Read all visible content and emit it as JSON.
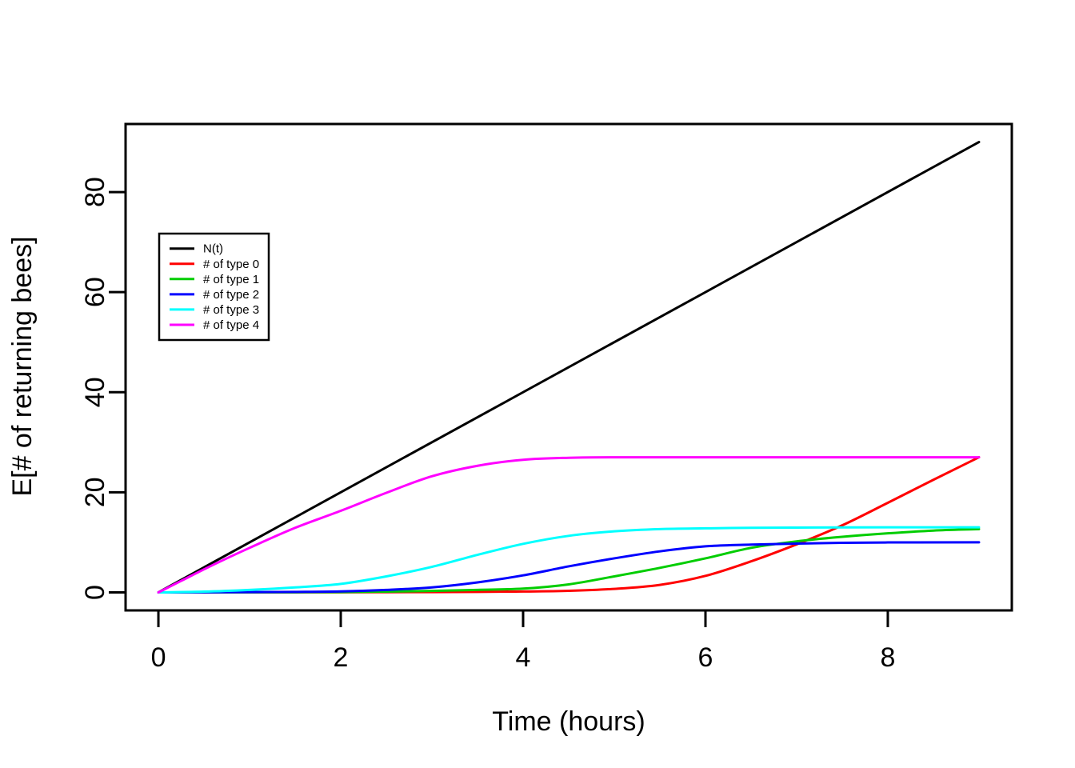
{
  "figure": {
    "background": "#ffffff",
    "axis_color": "#000000",
    "text_color": "#000000"
  },
  "chart_data": {
    "type": "line",
    "title": "",
    "xlabel": "Time (hours)",
    "ylabel": "E[# of returning bees]",
    "xlim": [
      0,
      9
    ],
    "ylim": [
      0,
      90
    ],
    "x_ticks": [
      0,
      2,
      4,
      6,
      8
    ],
    "y_ticks": [
      0,
      20,
      40,
      60,
      80
    ],
    "grid": false,
    "legend": {
      "position": "upper-left-inside",
      "border": true,
      "background": "#ffffff"
    },
    "series": [
      {
        "name": "N(t)",
        "color": "#000000",
        "points": [
          [
            0,
            0
          ],
          [
            9,
            90
          ]
        ]
      },
      {
        "name": "# of type 0",
        "color": "#FF0000",
        "points": [
          [
            0,
            0
          ],
          [
            1,
            0
          ],
          [
            2,
            0.02
          ],
          [
            3,
            0.06
          ],
          [
            3.5,
            0.1
          ],
          [
            4,
            0.17
          ],
          [
            4.5,
            0.32
          ],
          [
            5,
            0.7
          ],
          [
            5.5,
            1.5
          ],
          [
            6,
            3.3
          ],
          [
            6.5,
            6.2
          ],
          [
            7,
            9.6
          ],
          [
            7.5,
            13.4
          ],
          [
            8,
            17.9
          ],
          [
            8.5,
            22.5
          ],
          [
            9,
            27
          ]
        ]
      },
      {
        "name": "# of type 1",
        "color": "#00CD00",
        "points": [
          [
            0,
            0
          ],
          [
            1,
            0.01
          ],
          [
            2,
            0.06
          ],
          [
            2.5,
            0.15
          ],
          [
            3,
            0.3
          ],
          [
            3.5,
            0.5
          ],
          [
            4,
            0.75
          ],
          [
            4.5,
            1.6
          ],
          [
            5,
            3.2
          ],
          [
            5.5,
            4.9
          ],
          [
            6,
            6.8
          ],
          [
            6.5,
            8.9
          ],
          [
            7,
            10.2
          ],
          [
            7.5,
            11.1
          ],
          [
            8,
            11.8
          ],
          [
            8.5,
            12.35
          ],
          [
            9,
            12.65
          ]
        ]
      },
      {
        "name": "# of type 2",
        "color": "#0000FF",
        "points": [
          [
            0,
            0
          ],
          [
            1,
            0.05
          ],
          [
            1.5,
            0.1
          ],
          [
            2,
            0.2
          ],
          [
            2.5,
            0.5
          ],
          [
            3,
            1.0
          ],
          [
            3.5,
            2.0
          ],
          [
            4,
            3.4
          ],
          [
            4.5,
            5.2
          ],
          [
            5,
            6.8
          ],
          [
            5.5,
            8.2
          ],
          [
            6,
            9.2
          ],
          [
            6.5,
            9.55
          ],
          [
            7,
            9.75
          ],
          [
            7.5,
            9.9
          ],
          [
            8,
            9.98
          ],
          [
            9,
            10
          ]
        ]
      },
      {
        "name": "# of type 3",
        "color": "#00FFFF",
        "points": [
          [
            0,
            0
          ],
          [
            0.5,
            0.15
          ],
          [
            1,
            0.5
          ],
          [
            1.5,
            1.0
          ],
          [
            2,
            1.7
          ],
          [
            2.5,
            3.2
          ],
          [
            3,
            5.1
          ],
          [
            3.5,
            7.5
          ],
          [
            4,
            9.7
          ],
          [
            4.5,
            11.3
          ],
          [
            5,
            12.2
          ],
          [
            5.5,
            12.65
          ],
          [
            6,
            12.8
          ],
          [
            6.5,
            12.9
          ],
          [
            7,
            12.95
          ],
          [
            8,
            13
          ],
          [
            9,
            13
          ]
        ]
      },
      {
        "name": "# of type 4",
        "color": "#FF00FF",
        "points": [
          [
            0,
            0
          ],
          [
            0.25,
            2.3
          ],
          [
            0.5,
            4.6
          ],
          [
            0.75,
            6.8
          ],
          [
            1,
            8.9
          ],
          [
            1.5,
            12.9
          ],
          [
            2,
            16.3
          ],
          [
            2.5,
            19.9
          ],
          [
            3,
            23.2
          ],
          [
            3.5,
            25.3
          ],
          [
            4,
            26.5
          ],
          [
            4.5,
            26.9
          ],
          [
            5,
            27
          ],
          [
            6,
            27
          ],
          [
            7,
            27
          ],
          [
            8,
            27
          ],
          [
            9,
            27
          ]
        ]
      }
    ]
  }
}
